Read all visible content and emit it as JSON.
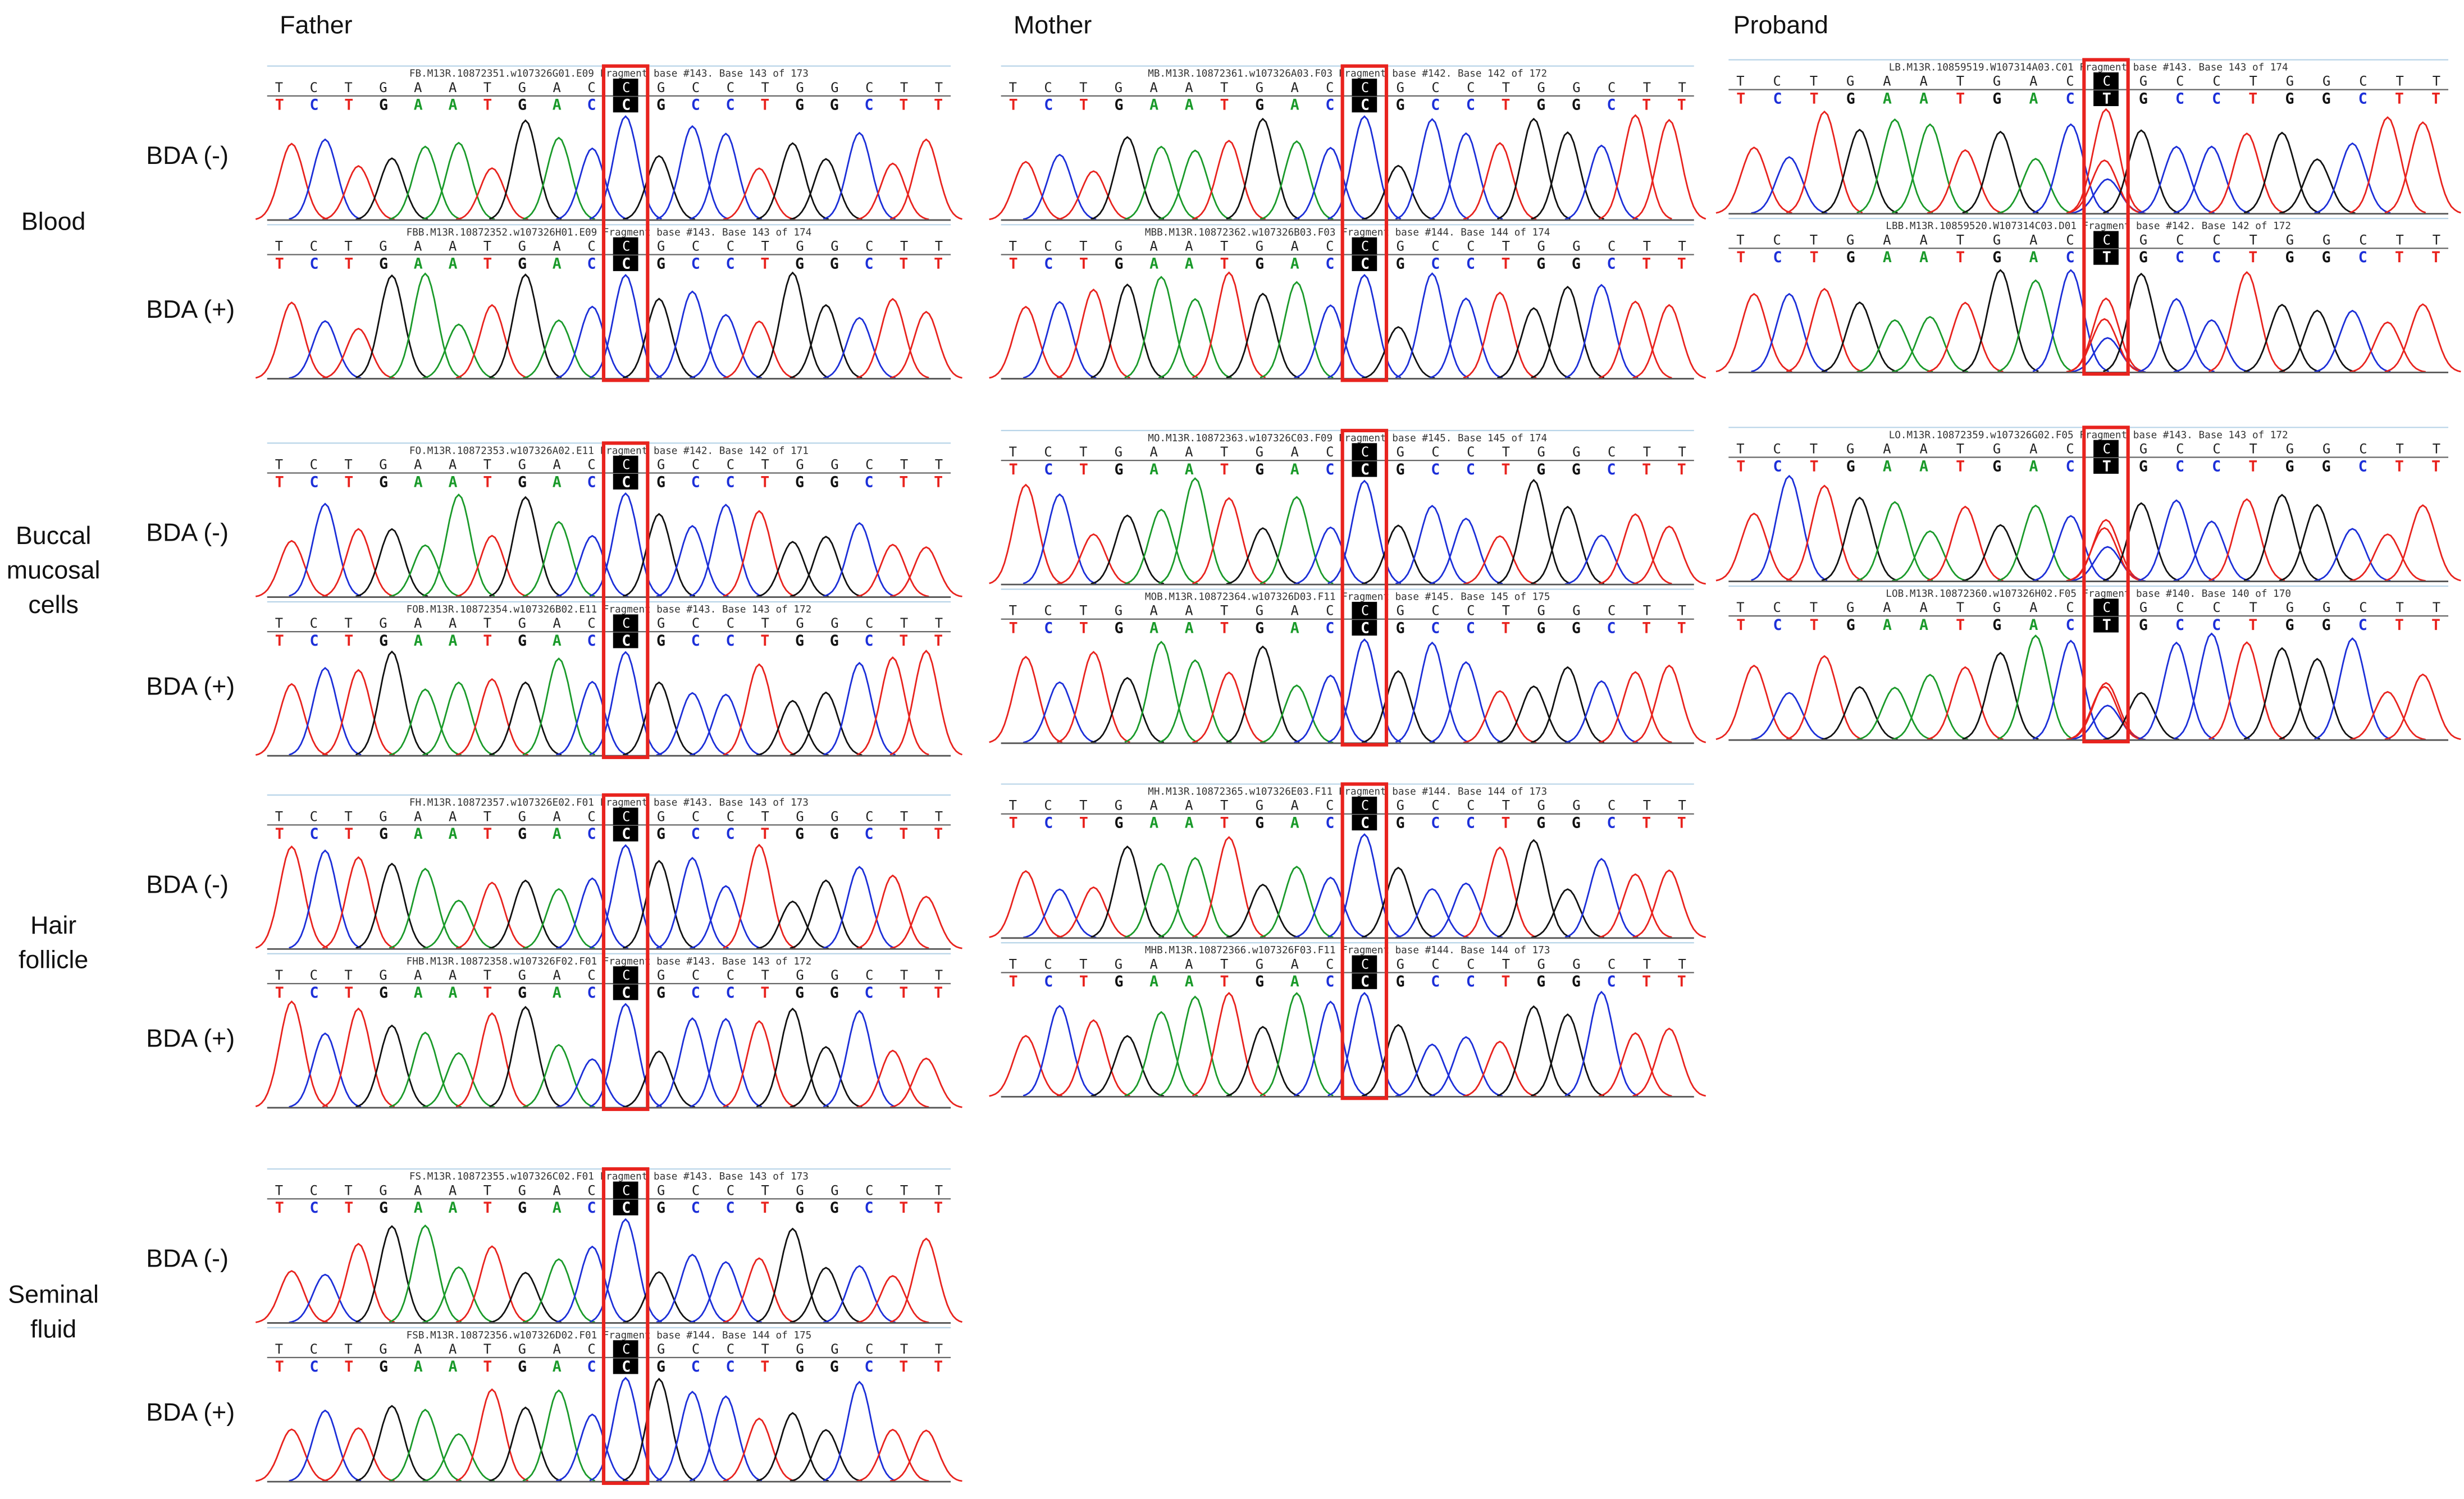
{
  "tissues": [
    [
      "Blood"
    ],
    [
      "Buccal",
      "mucosal",
      "cells"
    ],
    [
      "Hair",
      "follicle"
    ],
    [
      "Seminal",
      "fluid"
    ]
  ],
  "conditions": [
    "BDA (-)",
    "BDA (+)"
  ],
  "columns": [
    {
      "name": "Father",
      "groups": [
        {
          "panels": [
            {
              "header": "FB.M13R.10872351.w107326G01.E09 Fragment base #143.  Base 143 of 173",
              "reference": "TCTGAATGACCGCCTGGCTT",
              "called": "TCTGAATGACCGCCTGGCTT"
            },
            {
              "header": "FBB.M13R.10872352.w107326H01.E09 Fragment base #143.  Base 143 of 174",
              "reference": "TCTGAATGACCGCCTGGCTT",
              "called": "TCTGAATGACCGCCTGGCTT"
            }
          ]
        },
        {
          "panels": [
            {
              "header": "FO.M13R.10872353.w107326A02.E11 Fragment base #142.  Base 142 of 171",
              "reference": "TCTGAATGACCGCCTGGCTT",
              "called": "TCTGAATGACCGCCTGGCTT"
            },
            {
              "header": "FOB.M13R.10872354.w107326B02.E11 Fragment base #143.  Base 143 of 172",
              "reference": "TCTGAATGACCGCCTGGCTT",
              "called": "TCTGAATGACCGCCTGGCTT"
            }
          ]
        },
        {
          "panels": [
            {
              "header": "FH.M13R.10872357.w107326E02.F01 Fragment base #143.  Base 143 of 173",
              "reference": "TCTGAATGACCGCCTGGCTT",
              "called": "TCTGAATGACCGCCTGGCTT"
            },
            {
              "header": "FHB.M13R.10872358.w107326F02.F01 Fragment base #143.  Base 143 of 172",
              "reference": "TCTGAATGACCGCCTGGCTT",
              "called": "TCTGAATGACCGCCTGGCTT"
            }
          ]
        },
        {
          "panels": [
            {
              "header": "FS.M13R.10872355.w107326C02.F01 Fragment base #143.  Base 143 of 173",
              "reference": "TCTGAATGACCGCCTGGCTT",
              "called": "TCTGAATGACCGCCTGGCTT"
            },
            {
              "header": "FSB.M13R.10872356.w107326D02.F01 Fragment base #144.  Base 144 of 175",
              "reference": "TCTGAATGACCGCCTGGCTT",
              "called": "TCTGAATGACCGCCTGGCTT"
            }
          ]
        }
      ]
    },
    {
      "name": "Mother",
      "groups": [
        {
          "panels": [
            {
              "header": "MB.M13R.10872361.w107326A03.F03 Fragment base #142.  Base 142 of 172",
              "reference": "TCTGAATGACCGCCTGGCTT",
              "called": "TCTGAATGACCGCCTGGCTT"
            },
            {
              "header": "MBB.M13R.10872362.w107326B03.F03 Fragment base #144.  Base 144 of 174",
              "reference": "TCTGAATGACCGCCTGGCTT",
              "called": "TCTGAATGACCGCCTGGCTT"
            }
          ]
        },
        {
          "panels": [
            {
              "header": "MO.M13R.10872363.w107326C03.F09 Fragment base #145.  Base 145 of 174",
              "reference": "TCTGAATGACCGCCTGGCTT",
              "called": "TCTGAATGACCGCCTGGCTT"
            },
            {
              "header": "MOB.M13R.10872364.w107326D03.F11 Fragment base #145.  Base 145 of 175",
              "reference": "TCTGAATGACCGCCTGGCTT",
              "called": "TCTGAATGACCGCCTGGCTT"
            }
          ]
        },
        {
          "panels": [
            {
              "header": "MH.M13R.10872365.w107326E03.F11 Fragment base #144.  Base 144 of 173",
              "reference": "TCTGAATGACCGCCTGGCTT",
              "called": "TCTGAATGACCGCCTGGCTT"
            },
            {
              "header": "MHB.M13R.10872366.w107326F03.F11 Fragment base #144.  Base 144 of 173",
              "reference": "TCTGAATGACCGCCTGGCTT",
              "called": "TCTGAATGACCGCCTGGCTT"
            }
          ]
        }
      ]
    },
    {
      "name": "Proband",
      "groups": [
        {
          "panels": [
            {
              "header": "LB.M13R.10859519.W107314A03.C01 Fragment base #143.  Base 143 of 174",
              "reference": "TCTGAATGACCGCCTGGCTT",
              "called": "TCTGAATGACTGCCTGGCTT"
            },
            {
              "header": "LBB.M13R.10859520.W107314C03.D01 Fragment base #142.  Base 142 of 172",
              "reference": "TCTGAATGACCGCCTGGCTT",
              "called": "TCTGAATGACTGCCTGGCTT"
            }
          ]
        },
        {
          "panels": [
            {
              "header": "LO.M13R.10872359.w107326G02.F05 Fragment base #143.  Base 143 of 172",
              "reference": "TCTGAATGACCGCCTGGCTT",
              "called": "TCTGAATGACTGCCTGGCTT"
            },
            {
              "header": "LOB.M13R.10872360.w107326H02.F05 Fragment base #140.  Base 140 of 170",
              "reference": "TCTGAATGACCGCCTGGCTT",
              "called": "TCTGAATGACTGCCTGGCTT"
            }
          ]
        }
      ]
    }
  ]
}
